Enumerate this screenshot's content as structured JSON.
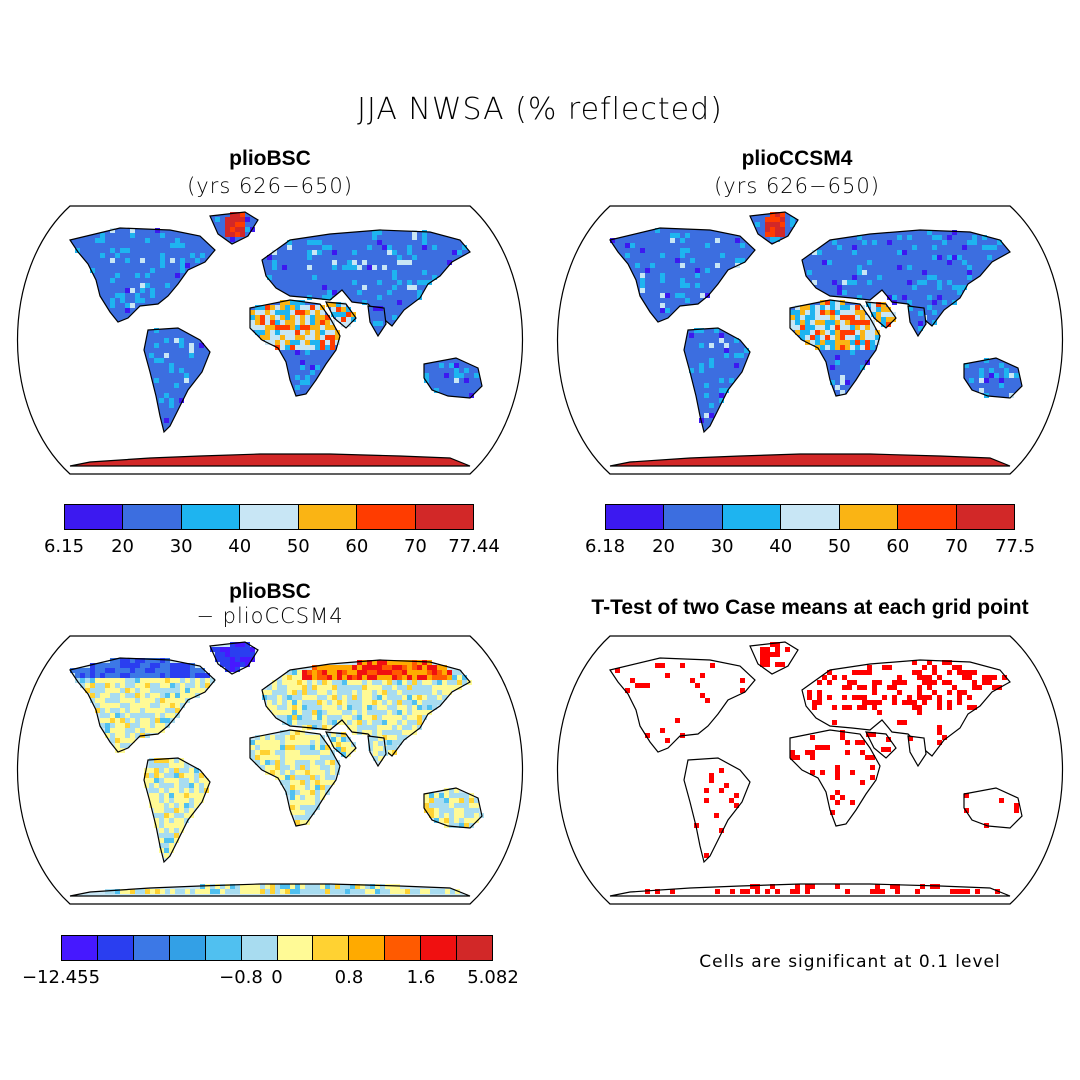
{
  "title": "JJA NWSA (% reflected)",
  "panels": [
    {
      "id": "p1",
      "title": "plioBSC",
      "subtitle": "(yrs 626−650)"
    },
    {
      "id": "p2",
      "title": "plioCCSM4",
      "subtitle": "(yrs 626−650)"
    },
    {
      "id": "p3",
      "title": "plioBSC",
      "subtitle": "− plioCCSM4"
    },
    {
      "id": "p4",
      "title": "T-Test of two Case means at each grid point",
      "subtitle": ""
    }
  ],
  "colorbars": {
    "cb1": {
      "colors": [
        "#3c19f0",
        "#3c6ee0",
        "#1eb4f0",
        "#c8e6f5",
        "#fab414",
        "#ff3c00",
        "#d22828"
      ],
      "labels": [
        "6.15",
        "20",
        "30",
        "40",
        "50",
        "60",
        "70",
        "77.44"
      ]
    },
    "cb2": {
      "colors": [
        "#3c19f0",
        "#3c6ee0",
        "#1eb4f0",
        "#c8e6f5",
        "#fab414",
        "#ff3c00",
        "#d22828"
      ],
      "labels": [
        "6.18",
        "20",
        "30",
        "40",
        "50",
        "60",
        "70",
        "77.5"
      ]
    },
    "cb3": {
      "colors": [
        "#4618ff",
        "#2a3ef0",
        "#3c78e6",
        "#33a0e6",
        "#50c0f0",
        "#a8dcf0",
        "#fffa96",
        "#ffd232",
        "#ffaa00",
        "#ff5a00",
        "#f01010",
        "#d22828"
      ],
      "labels": [
        "−12.455",
        "−0.8",
        "0",
        "0.8",
        "1.6",
        "5.082"
      ]
    }
  },
  "significance_note": "Cells are significant at 0.1 level"
}
